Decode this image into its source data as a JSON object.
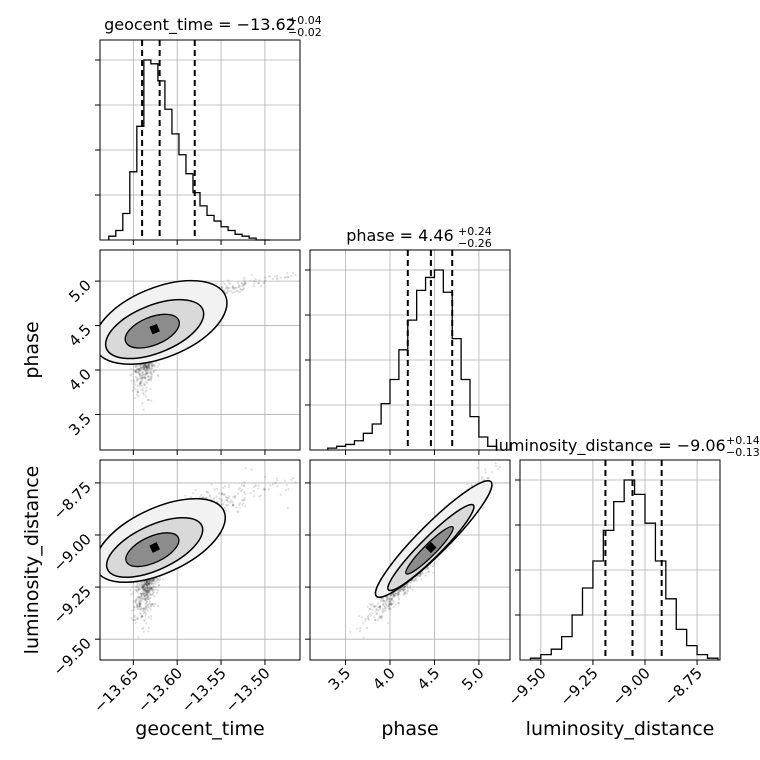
{
  "chart_data": {
    "type": "corner",
    "parameters": [
      "geocent_time",
      "phase",
      "luminosity_distance"
    ],
    "titles": [
      {
        "param": "geocent_time",
        "label": "geocent_time = ",
        "median": "−13.62",
        "plus": "+0.04",
        "minus": "−0.02"
      },
      {
        "param": "phase",
        "label": "phase = ",
        "median": "4.46",
        "plus": "+0.24",
        "minus": "−0.26"
      },
      {
        "param": "luminosity_distance",
        "label": "luminosity_distance = ",
        "median": "−9.06",
        "plus": "+0.14",
        "minus": "−0.13"
      }
    ],
    "axes": {
      "geocent_time": {
        "range": [
          -13.688,
          -13.46
        ],
        "ticks": [
          -13.65,
          -13.6,
          -13.55,
          -13.5
        ],
        "tick_labels": [
          "−13.65",
          "−13.60",
          "−13.55",
          "−13.50"
        ]
      },
      "phase": {
        "range": [
          3.1,
          5.35
        ],
        "ticks": [
          3.5,
          4.0,
          4.5,
          5.0
        ],
        "tick_labels": [
          "3.5",
          "4.0",
          "4.5",
          "5.0"
        ]
      },
      "luminosity_distance": {
        "range": [
          -9.6,
          -8.64
        ],
        "ticks": [
          -9.5,
          -9.25,
          -9.0,
          -8.75
        ],
        "tick_labels": [
          "−9.50",
          "−9.25",
          "−9.00",
          "−8.75"
        ]
      }
    },
    "axis_labels": [
      "geocent_time",
      "phase",
      "luminosity_distance"
    ],
    "quantiles": {
      "geocent_time": [
        -13.64,
        -13.62,
        -13.58
      ],
      "phase": [
        4.2,
        4.46,
        4.7
      ],
      "luminosity_distance": [
        -9.19,
        -9.06,
        -8.92
      ]
    },
    "histograms": {
      "geocent_time": {
        "bins": [
          -13.678,
          -13.67,
          -13.662,
          -13.654,
          -13.646,
          -13.638,
          -13.63,
          -13.622,
          -13.614,
          -13.606,
          -13.598,
          -13.59,
          -13.582,
          -13.574,
          -13.566,
          -13.558,
          -13.55,
          -13.542,
          -13.534,
          -13.526,
          -13.518,
          -13.51,
          -13.502,
          -13.494
        ],
        "counts": [
          0.02,
          0.05,
          0.14,
          0.36,
          0.6,
          0.95,
          0.93,
          0.84,
          0.69,
          0.56,
          0.45,
          0.35,
          0.25,
          0.18,
          0.13,
          0.1,
          0.07,
          0.05,
          0.03,
          0.02,
          0.01,
          0.0,
          0.0
        ]
      },
      "phase": {
        "bins": [
          3.3,
          3.4,
          3.5,
          3.6,
          3.7,
          3.8,
          3.9,
          4.0,
          4.1,
          4.2,
          4.3,
          4.4,
          4.5,
          4.6,
          4.7,
          4.8,
          4.9,
          5.0,
          5.1,
          5.2
        ],
        "counts": [
          0.01,
          0.02,
          0.03,
          0.05,
          0.09,
          0.14,
          0.25,
          0.38,
          0.54,
          0.7,
          0.86,
          0.93,
          0.97,
          0.85,
          0.6,
          0.38,
          0.18,
          0.07,
          0.02
        ]
      },
      "luminosity_distance": {
        "bins": [
          -9.55,
          -9.5,
          -9.45,
          -9.4,
          -9.35,
          -9.3,
          -9.25,
          -9.2,
          -9.15,
          -9.1,
          -9.05,
          -9.0,
          -8.95,
          -8.9,
          -8.85,
          -8.8,
          -8.75,
          -8.7,
          -8.65
        ],
        "counts": [
          0.01,
          0.03,
          0.06,
          0.13,
          0.25,
          0.4,
          0.55,
          0.72,
          0.88,
          1.0,
          0.92,
          0.76,
          0.55,
          0.34,
          0.17,
          0.08,
          0.03,
          0.01
        ]
      }
    },
    "grid": true
  }
}
